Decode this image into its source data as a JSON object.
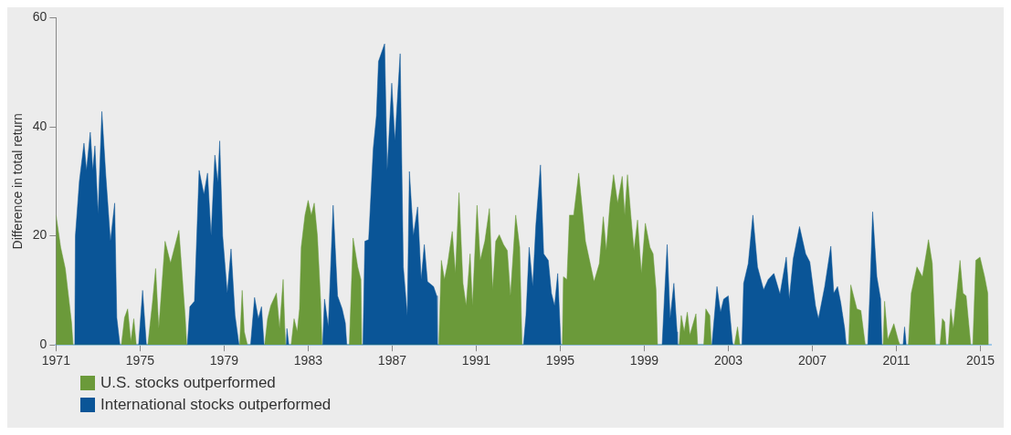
{
  "chart_data": {
    "type": "area",
    "ylabel": "Difference in total return",
    "xlim": [
      1971,
      2015.5
    ],
    "xticks": [
      1971,
      1975,
      1979,
      1983,
      1987,
      1991,
      1995,
      1999,
      2003,
      2007,
      2011,
      2015
    ],
    "ylim": [
      0,
      60
    ],
    "yticks": [
      0,
      20,
      40,
      60
    ],
    "legend": "bottom left",
    "series": [
      {
        "name": "U.S. stocks outperformed",
        "color": "#6b9a3a",
        "x": [
          1971.0,
          1971.22,
          1971.44,
          1971.74,
          1971.81,
          1974.11,
          1974.26,
          1974.41,
          1974.56,
          1974.7,
          1974.82,
          1975.37,
          1975.59,
          1975.74,
          1975.89,
          1976.19,
          1976.45,
          1976.85,
          1977.15,
          1977.22,
          1979.74,
          1979.86,
          1979.96,
          1980.11,
          1980.93,
          1981.07,
          1981.22,
          1981.49,
          1981.64,
          1981.81,
          1981.89,
          1981.93,
          1982.19,
          1982.33,
          1982.48,
          1982.59,
          1982.67,
          1982.85,
          1983.0,
          1983.15,
          1983.29,
          1983.44,
          1983.59,
          1983.66,
          1984.96,
          1985.14,
          1985.36,
          1985.51,
          1985.55,
          1989.22,
          1989.34,
          1989.49,
          1989.64,
          1989.86,
          1990.01,
          1990.18,
          1990.37,
          1990.52,
          1990.71,
          1990.82,
          1991.04,
          1991.19,
          1991.41,
          1991.63,
          1991.78,
          1991.93,
          1992.1,
          1992.3,
          1992.48,
          1992.63,
          1992.88,
          1993.07,
          1993.18,
          1995.1,
          1995.15,
          1995.32,
          1995.44,
          1995.64,
          1995.88,
          1996.2,
          1996.61,
          1996.86,
          1997.05,
          1997.19,
          1997.37,
          1997.54,
          1997.73,
          1997.95,
          1998.07,
          1998.2,
          1998.36,
          1998.51,
          1998.68,
          1998.86,
          1999.05,
          1999.27,
          1999.42,
          1999.56,
          1999.63,
          2000.66,
          2000.76,
          2000.9,
          2001.05,
          2001.17,
          2001.46,
          2001.54,
          2001.83,
          2001.93,
          2002.12,
          2002.19,
          2003.29,
          2003.44,
          2003.55,
          2008.73,
          2008.83,
          2009.12,
          2009.31,
          2009.52,
          2010.37,
          2010.44,
          2010.59,
          2010.88,
          2011.1,
          2011.17,
          2011.57,
          2011.71,
          2011.98,
          2012.24,
          2012.53,
          2012.71,
          2012.86,
          2013.08,
          2013.19,
          2013.3,
          2013.37,
          2013.47,
          2013.59,
          2013.71,
          2014.03,
          2014.17,
          2014.32,
          2014.54,
          2014.64,
          2014.78,
          2014.98,
          2015.2,
          2015.35,
          2015.38
        ],
        "values": [
          23.8,
          17.9,
          14,
          4,
          0,
          0,
          5,
          6.6,
          0.6,
          4.8,
          0,
          0,
          7.8,
          14,
          3,
          19,
          15,
          21,
          5,
          0,
          0,
          10,
          2.4,
          0,
          0,
          4.8,
          7.2,
          9.5,
          3,
          12,
          3,
          0,
          0,
          4.8,
          2.4,
          6.6,
          17.9,
          23.8,
          26.5,
          23.8,
          26,
          20,
          8.4,
          0,
          0,
          19.6,
          14.3,
          12,
          0,
          0,
          15.5,
          12,
          14.9,
          20.8,
          13.1,
          27.9,
          11.3,
          7.2,
          16.7,
          7.2,
          25.6,
          15.5,
          19,
          25,
          10.1,
          19,
          20.2,
          18.4,
          17.3,
          9,
          23.8,
          17.9,
          0,
          0,
          12.5,
          12,
          23.8,
          23.8,
          31.5,
          19,
          11.6,
          14.9,
          23.5,
          17.3,
          26,
          31.2,
          26,
          30.9,
          23.8,
          31.2,
          23.8,
          17.3,
          22.9,
          13.1,
          22.3,
          17.9,
          16.7,
          10.1,
          0,
          0,
          5.4,
          2.4,
          6,
          1.8,
          5.7,
          0,
          0,
          6.6,
          5.4,
          0,
          0,
          3.3,
          0,
          0,
          11,
          6.6,
          6.3,
          0,
          0,
          8,
          1,
          3.9,
          0.7,
          0,
          0,
          9.5,
          14.3,
          12.5,
          19.3,
          14.9,
          0,
          0,
          4.8,
          4.2,
          0,
          0,
          6.6,
          3,
          15.5,
          9.5,
          9,
          0,
          0,
          15.5,
          16.1,
          12.5,
          9.5,
          0
        ]
      },
      {
        "name": "International stocks outperformed",
        "color": "#0a5597",
        "x": [
          1971.89,
          1971.92,
          1972.11,
          1972.33,
          1972.45,
          1972.63,
          1972.75,
          1972.85,
          1973.0,
          1973.18,
          1973.37,
          1973.59,
          1973.79,
          1973.89,
          1974.04,
          1974.93,
          1975.12,
          1975.3,
          1977.25,
          1977.37,
          1977.59,
          1977.81,
          1978.04,
          1978.21,
          1978.38,
          1978.56,
          1978.7,
          1978.79,
          1978.93,
          1979.15,
          1979.33,
          1979.52,
          1979.71,
          1980.26,
          1980.45,
          1980.63,
          1980.78,
          1980.9,
          1981.96,
          1981.99,
          1982.08,
          1983.69,
          1983.78,
          1983.96,
          1984.19,
          1984.4,
          1984.62,
          1984.77,
          1984.84,
          1985.61,
          1985.7,
          1985.88,
          1986.1,
          1986.25,
          1986.35,
          1986.64,
          1986.76,
          1986.98,
          1987.13,
          1987.38,
          1987.53,
          1987.72,
          1987.82,
          1988.01,
          1988.21,
          1988.38,
          1988.53,
          1988.68,
          1988.97,
          1989.12,
          1989.15,
          1993.25,
          1993.37,
          1993.52,
          1993.69,
          1993.84,
          1994.06,
          1994.21,
          1994.43,
          1994.58,
          1994.73,
          1994.88,
          1995.03,
          1999.85,
          1999.97,
          2000.09,
          2000.23,
          2000.41,
          2000.56,
          2000.58,
          2002.22,
          2002.46,
          2002.63,
          2002.78,
          2003.0,
          2003.19,
          2003.22,
          2003.65,
          2003.73,
          2003.95,
          2004.17,
          2004.39,
          2004.68,
          2004.9,
          2005.17,
          2005.46,
          2005.76,
          2005.9,
          2006.09,
          2006.39,
          2006.68,
          2006.88,
          2007.15,
          2007.29,
          2007.59,
          2007.88,
          2008.02,
          2008.2,
          2008.35,
          2008.54,
          2008.61,
          2009.64,
          2009.75,
          2009.87,
          2010.07,
          2010.25,
          2010.31,
          2011.32,
          2011.39,
          2011.47
        ],
        "values": [
          0,
          20,
          30,
          37,
          32,
          39,
          32,
          36.5,
          24,
          42.8,
          31,
          19,
          26,
          5,
          0,
          0,
          10,
          0,
          0,
          7,
          8,
          32,
          27.6,
          31.5,
          20,
          34.8,
          29.7,
          37.4,
          20,
          9.5,
          17.6,
          5.4,
          0,
          0,
          8.7,
          4.8,
          7,
          0,
          0,
          3,
          0,
          0,
          8.4,
          3.3,
          25.6,
          9,
          6.6,
          4,
          0,
          0,
          19,
          19.3,
          36,
          42,
          52,
          55.2,
          32,
          48,
          37.4,
          53.4,
          14.3,
          5.4,
          31.8,
          20,
          25.3,
          12,
          18.4,
          11.6,
          10.7,
          9,
          0,
          0,
          5.4,
          17.9,
          10.7,
          22,
          33,
          16.7,
          15.5,
          9.5,
          7.2,
          13.1,
          0,
          0,
          9.5,
          18.4,
          4.8,
          11.3,
          2.4,
          0,
          0,
          10.7,
          6,
          8.4,
          9,
          0.7,
          0,
          0,
          11.3,
          14.9,
          23.8,
          14.3,
          10.1,
          12,
          13.1,
          9.3,
          16.1,
          8.4,
          15.8,
          21.7,
          16.7,
          15.2,
          7.2,
          4.8,
          10.7,
          18.1,
          9.5,
          10.7,
          7.8,
          3,
          0,
          0,
          10.7,
          24.4,
          12.5,
          8.4,
          0,
          0,
          3.3,
          0
        ]
      }
    ]
  }
}
